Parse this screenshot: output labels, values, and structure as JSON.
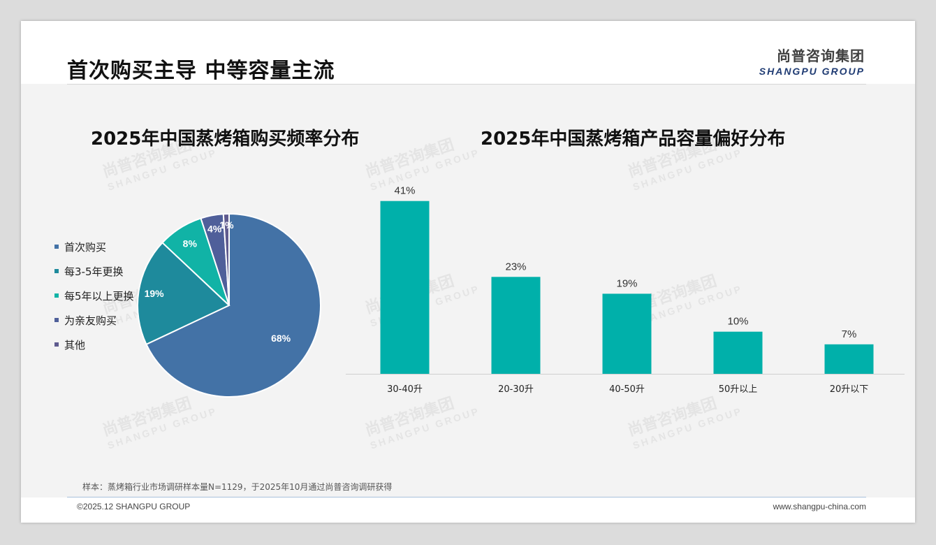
{
  "header": {
    "title": "首次购买主导 中等容量主流",
    "logo_cn": "尚普咨询集团",
    "logo_en": "SHANGPU GROUP"
  },
  "watermark": {
    "cn": "尚普咨询集团",
    "en": "SHANGPU GROUP"
  },
  "colors": {
    "pie": [
      "#4372a6",
      "#1e8a9c",
      "#11b3a6",
      "#4f5f9a",
      "#5e5a8e"
    ],
    "bar": "#00b0aa",
    "background": "#f3f3f3"
  },
  "chart_data": [
    {
      "type": "pie",
      "title": "2025年中国蒸烤箱购买频率分布",
      "legend_position": "left",
      "categories": [
        "首次购买",
        "每3-5年更换",
        "每5年以上更换",
        "为亲友购买",
        "其他"
      ],
      "values": [
        68,
        19,
        8,
        4,
        1
      ],
      "data_labels": [
        "68%",
        "19%",
        "8%",
        "4%",
        "1%"
      ]
    },
    {
      "type": "bar",
      "title": "2025年中国蒸烤箱产品容量偏好分布",
      "categories": [
        "30-40升",
        "20-30升",
        "40-50升",
        "50升以上",
        "20升以下"
      ],
      "values": [
        41,
        23,
        19,
        10,
        7
      ],
      "data_labels": [
        "41%",
        "23%",
        "19%",
        "10%",
        "7%"
      ],
      "ylim": [
        0,
        45
      ],
      "grid": false
    }
  ],
  "footer": {
    "note": "样本：蒸烤箱行业市场调研样本量N=1129，于2025年10月通过尚普咨询调研获得",
    "copyright": "©2025.12 SHANGPU GROUP",
    "website": "www.shangpu-china.com"
  }
}
